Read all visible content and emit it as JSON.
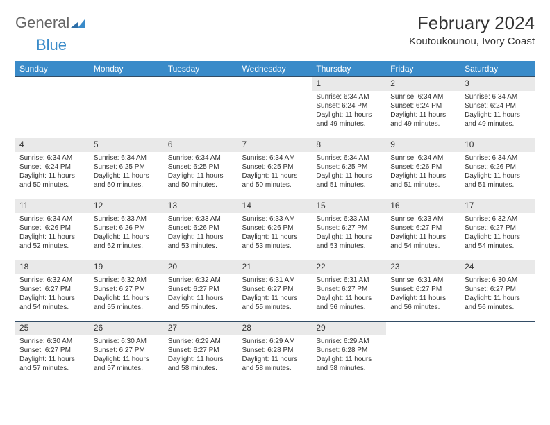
{
  "logo": {
    "part1": "General",
    "part2": "Blue"
  },
  "title": "February 2024",
  "location": "Koutoukounou, Ivory Coast",
  "colors": {
    "header_bg": "#3a8bc9",
    "header_text": "#ffffff",
    "daynum_bg": "#e9e9e9",
    "cell_border": "#334d66",
    "body_text": "#333333",
    "page_bg": "#ffffff"
  },
  "fonts": {
    "title_pt": 26,
    "location_pt": 15,
    "th_pt": 12,
    "cell_pt": 10
  },
  "weekdays": [
    "Sunday",
    "Monday",
    "Tuesday",
    "Wednesday",
    "Thursday",
    "Friday",
    "Saturday"
  ],
  "weeks": [
    [
      {
        "day": ""
      },
      {
        "day": ""
      },
      {
        "day": ""
      },
      {
        "day": ""
      },
      {
        "day": "1",
        "sunrise": "Sunrise: 6:34 AM",
        "sunset": "Sunset: 6:24 PM",
        "daylight": "Daylight: 11 hours and 49 minutes."
      },
      {
        "day": "2",
        "sunrise": "Sunrise: 6:34 AM",
        "sunset": "Sunset: 6:24 PM",
        "daylight": "Daylight: 11 hours and 49 minutes."
      },
      {
        "day": "3",
        "sunrise": "Sunrise: 6:34 AM",
        "sunset": "Sunset: 6:24 PM",
        "daylight": "Daylight: 11 hours and 49 minutes."
      }
    ],
    [
      {
        "day": "4",
        "sunrise": "Sunrise: 6:34 AM",
        "sunset": "Sunset: 6:24 PM",
        "daylight": "Daylight: 11 hours and 50 minutes."
      },
      {
        "day": "5",
        "sunrise": "Sunrise: 6:34 AM",
        "sunset": "Sunset: 6:25 PM",
        "daylight": "Daylight: 11 hours and 50 minutes."
      },
      {
        "day": "6",
        "sunrise": "Sunrise: 6:34 AM",
        "sunset": "Sunset: 6:25 PM",
        "daylight": "Daylight: 11 hours and 50 minutes."
      },
      {
        "day": "7",
        "sunrise": "Sunrise: 6:34 AM",
        "sunset": "Sunset: 6:25 PM",
        "daylight": "Daylight: 11 hours and 50 minutes."
      },
      {
        "day": "8",
        "sunrise": "Sunrise: 6:34 AM",
        "sunset": "Sunset: 6:25 PM",
        "daylight": "Daylight: 11 hours and 51 minutes."
      },
      {
        "day": "9",
        "sunrise": "Sunrise: 6:34 AM",
        "sunset": "Sunset: 6:26 PM",
        "daylight": "Daylight: 11 hours and 51 minutes."
      },
      {
        "day": "10",
        "sunrise": "Sunrise: 6:34 AM",
        "sunset": "Sunset: 6:26 PM",
        "daylight": "Daylight: 11 hours and 51 minutes."
      }
    ],
    [
      {
        "day": "11",
        "sunrise": "Sunrise: 6:34 AM",
        "sunset": "Sunset: 6:26 PM",
        "daylight": "Daylight: 11 hours and 52 minutes."
      },
      {
        "day": "12",
        "sunrise": "Sunrise: 6:33 AM",
        "sunset": "Sunset: 6:26 PM",
        "daylight": "Daylight: 11 hours and 52 minutes."
      },
      {
        "day": "13",
        "sunrise": "Sunrise: 6:33 AM",
        "sunset": "Sunset: 6:26 PM",
        "daylight": "Daylight: 11 hours and 53 minutes."
      },
      {
        "day": "14",
        "sunrise": "Sunrise: 6:33 AM",
        "sunset": "Sunset: 6:26 PM",
        "daylight": "Daylight: 11 hours and 53 minutes."
      },
      {
        "day": "15",
        "sunrise": "Sunrise: 6:33 AM",
        "sunset": "Sunset: 6:27 PM",
        "daylight": "Daylight: 11 hours and 53 minutes."
      },
      {
        "day": "16",
        "sunrise": "Sunrise: 6:33 AM",
        "sunset": "Sunset: 6:27 PM",
        "daylight": "Daylight: 11 hours and 54 minutes."
      },
      {
        "day": "17",
        "sunrise": "Sunrise: 6:32 AM",
        "sunset": "Sunset: 6:27 PM",
        "daylight": "Daylight: 11 hours and 54 minutes."
      }
    ],
    [
      {
        "day": "18",
        "sunrise": "Sunrise: 6:32 AM",
        "sunset": "Sunset: 6:27 PM",
        "daylight": "Daylight: 11 hours and 54 minutes."
      },
      {
        "day": "19",
        "sunrise": "Sunrise: 6:32 AM",
        "sunset": "Sunset: 6:27 PM",
        "daylight": "Daylight: 11 hours and 55 minutes."
      },
      {
        "day": "20",
        "sunrise": "Sunrise: 6:32 AM",
        "sunset": "Sunset: 6:27 PM",
        "daylight": "Daylight: 11 hours and 55 minutes."
      },
      {
        "day": "21",
        "sunrise": "Sunrise: 6:31 AM",
        "sunset": "Sunset: 6:27 PM",
        "daylight": "Daylight: 11 hours and 55 minutes."
      },
      {
        "day": "22",
        "sunrise": "Sunrise: 6:31 AM",
        "sunset": "Sunset: 6:27 PM",
        "daylight": "Daylight: 11 hours and 56 minutes."
      },
      {
        "day": "23",
        "sunrise": "Sunrise: 6:31 AM",
        "sunset": "Sunset: 6:27 PM",
        "daylight": "Daylight: 11 hours and 56 minutes."
      },
      {
        "day": "24",
        "sunrise": "Sunrise: 6:30 AM",
        "sunset": "Sunset: 6:27 PM",
        "daylight": "Daylight: 11 hours and 56 minutes."
      }
    ],
    [
      {
        "day": "25",
        "sunrise": "Sunrise: 6:30 AM",
        "sunset": "Sunset: 6:27 PM",
        "daylight": "Daylight: 11 hours and 57 minutes."
      },
      {
        "day": "26",
        "sunrise": "Sunrise: 6:30 AM",
        "sunset": "Sunset: 6:27 PM",
        "daylight": "Daylight: 11 hours and 57 minutes."
      },
      {
        "day": "27",
        "sunrise": "Sunrise: 6:29 AM",
        "sunset": "Sunset: 6:27 PM",
        "daylight": "Daylight: 11 hours and 58 minutes."
      },
      {
        "day": "28",
        "sunrise": "Sunrise: 6:29 AM",
        "sunset": "Sunset: 6:28 PM",
        "daylight": "Daylight: 11 hours and 58 minutes."
      },
      {
        "day": "29",
        "sunrise": "Sunrise: 6:29 AM",
        "sunset": "Sunset: 6:28 PM",
        "daylight": "Daylight: 11 hours and 58 minutes."
      },
      {
        "day": ""
      },
      {
        "day": ""
      }
    ]
  ]
}
